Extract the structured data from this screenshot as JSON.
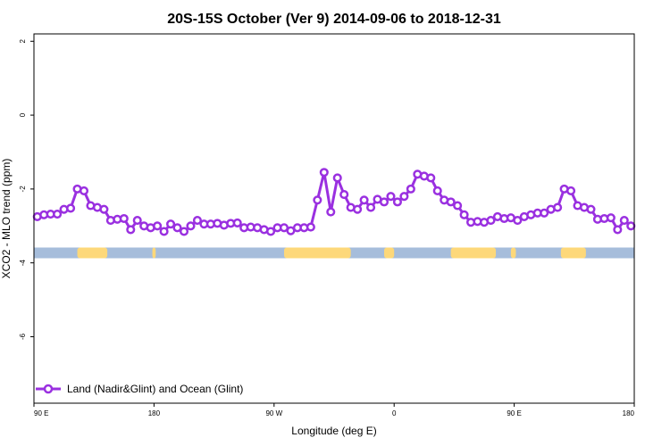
{
  "chart_data": {
    "type": "line",
    "title": "20S-15S October (Ver 9)   2014-09-06 to 2018-12-31",
    "xlabel": "Longitude (deg E)",
    "ylabel": "XCO2 - MLO trend (ppm)",
    "xlim": [
      90,
      450
    ],
    "ylim": [
      -7.8,
      2.2
    ],
    "x_ticks": [
      90,
      162,
      234,
      306,
      378,
      450
    ],
    "x_tick_labels": [
      "90 E",
      "180",
      "90 W",
      "0",
      "90 E",
      "180"
    ],
    "y_ticks": [
      -6,
      -4,
      -2,
      0,
      2
    ],
    "y_tick_labels": [
      "-6",
      "-4",
      "-2",
      "0",
      "2"
    ],
    "grid": false,
    "legend_position": "bottom-left",
    "series": [
      {
        "name": "Land (Nadir&Glint) and Ocean (Glint)",
        "color": "#9a30e0",
        "x": [
          92,
          96,
          100,
          104,
          108,
          112,
          116,
          120,
          124,
          128,
          132,
          136,
          140,
          144,
          148,
          152,
          156,
          160,
          164,
          168,
          172,
          176,
          180,
          184,
          188,
          192,
          196,
          200,
          204,
          208,
          212,
          216,
          220,
          224,
          228,
          232,
          236,
          240,
          244,
          248,
          252,
          256,
          260,
          264,
          268,
          272,
          276,
          280,
          284,
          288,
          292,
          296,
          300,
          304,
          308,
          312,
          316,
          320,
          324,
          328,
          332,
          336,
          340,
          344,
          348,
          352,
          356,
          360,
          364,
          368,
          372,
          376,
          380,
          384,
          388,
          392,
          396,
          400,
          404,
          408,
          412,
          416,
          420,
          424,
          428,
          432,
          436,
          440,
          444,
          448
        ],
        "y": [
          -2.75,
          -2.7,
          -2.68,
          -2.68,
          -2.55,
          -2.52,
          -2.0,
          -2.05,
          -2.45,
          -2.5,
          -2.55,
          -2.85,
          -2.82,
          -2.8,
          -3.1,
          -2.85,
          -3.0,
          -3.05,
          -3.0,
          -3.15,
          -2.95,
          -3.05,
          -3.15,
          -3.0,
          -2.85,
          -2.95,
          -2.95,
          -2.93,
          -2.98,
          -2.93,
          -2.92,
          -3.05,
          -3.03,
          -3.05,
          -3.1,
          -3.15,
          -3.05,
          -3.05,
          -3.13,
          -3.05,
          -3.05,
          -3.03,
          -2.3,
          -1.55,
          -2.62,
          -1.7,
          -2.15,
          -2.5,
          -2.55,
          -2.3,
          -2.5,
          -2.28,
          -2.35,
          -2.2,
          -2.35,
          -2.2,
          -2.0,
          -1.6,
          -1.65,
          -1.7,
          -2.05,
          -2.3,
          -2.35,
          -2.45,
          -2.7,
          -2.9,
          -2.88,
          -2.9,
          -2.85,
          -2.75,
          -2.8,
          -2.78,
          -2.85,
          -2.75,
          -2.7,
          -2.65,
          -2.65,
          -2.55,
          -2.5,
          -2.0,
          -2.05,
          -2.45,
          -2.5,
          -2.55,
          -2.82,
          -2.8,
          -2.78,
          -3.1,
          -2.85,
          -3.0
        ]
      }
    ],
    "surface_band": {
      "y": -3.73,
      "ocean_color": "#a6bddb",
      "land_color": "#fdd87a",
      "land_ranges": [
        [
          116,
          134
        ],
        [
          161,
          163
        ],
        [
          240,
          280
        ],
        [
          300,
          306
        ],
        [
          340,
          367
        ],
        [
          376,
          379
        ],
        [
          406,
          421
        ]
      ]
    }
  }
}
